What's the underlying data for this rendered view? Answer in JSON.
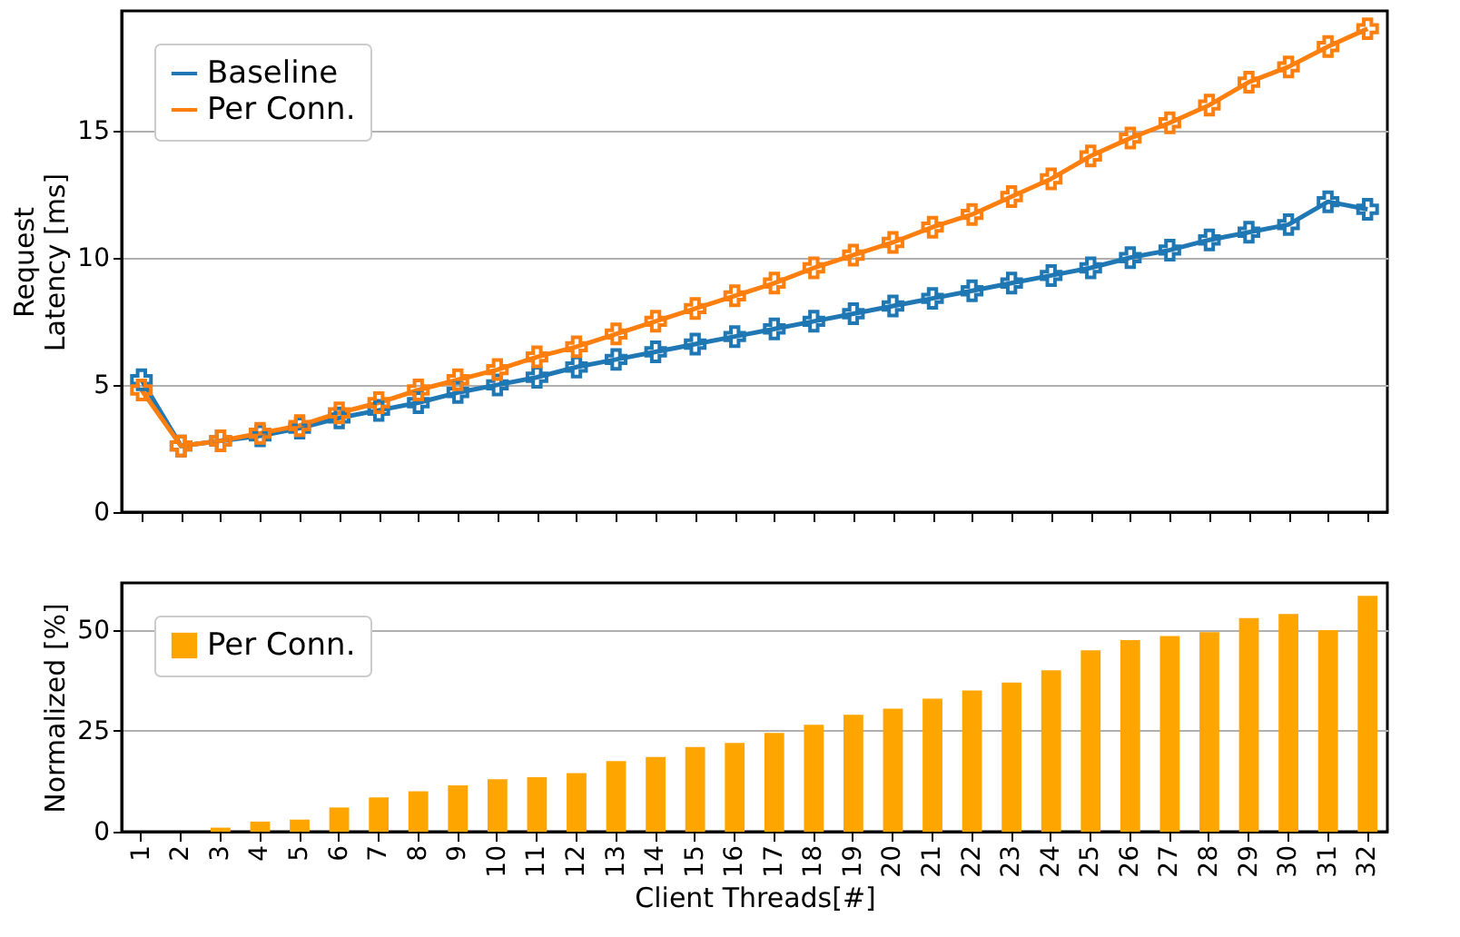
{
  "chart_data": [
    {
      "type": "line",
      "ylabel": "Request\nLatency [ms]",
      "categories": [
        "1",
        "2",
        "3",
        "4",
        "5",
        "6",
        "7",
        "8",
        "9",
        "10",
        "11",
        "12",
        "13",
        "14",
        "15",
        "16",
        "17",
        "18",
        "19",
        "20",
        "21",
        "22",
        "23",
        "24",
        "25",
        "26",
        "27",
        "28",
        "29",
        "30",
        "31",
        "32"
      ],
      "series": [
        {
          "name": "Baseline",
          "color": "#1f77b4",
          "values": [
            5.2,
            2.6,
            2.8,
            3.0,
            3.3,
            3.7,
            4.0,
            4.3,
            4.7,
            5.0,
            5.3,
            5.7,
            6.0,
            6.3,
            6.6,
            6.9,
            7.2,
            7.5,
            7.8,
            8.1,
            8.4,
            8.7,
            9.0,
            9.3,
            9.6,
            10.0,
            10.3,
            10.7,
            11.0,
            11.3,
            12.2,
            11.9
          ]
        },
        {
          "name": "Per Conn.",
          "color": "#ff7f0e",
          "values": [
            4.8,
            2.6,
            2.8,
            3.1,
            3.4,
            3.9,
            4.3,
            4.8,
            5.2,
            5.6,
            6.1,
            6.5,
            7.0,
            7.5,
            8.0,
            8.5,
            9.0,
            9.6,
            10.1,
            10.6,
            11.2,
            11.7,
            12.4,
            13.1,
            14.0,
            14.7,
            15.3,
            16.0,
            16.9,
            17.5,
            18.3,
            19.0
          ]
        }
      ],
      "ylim": [
        0,
        19.7
      ],
      "yticks": [
        0,
        5,
        10,
        15
      ],
      "grid": "y",
      "legend": "top left",
      "marker": "cross",
      "line_style": "solid",
      "tick_labels": "y"
    },
    {
      "type": "bar",
      "ylabel": "Normalized [%]",
      "xlabel": "Client Threads[#]",
      "categories": [
        "1",
        "2",
        "3",
        "4",
        "5",
        "6",
        "7",
        "8",
        "9",
        "10",
        "11",
        "12",
        "13",
        "14",
        "15",
        "16",
        "17",
        "18",
        "19",
        "20",
        "21",
        "22",
        "23",
        "24",
        "25",
        "26",
        "27",
        "28",
        "29",
        "30",
        "31",
        "32"
      ],
      "series": [
        {
          "name": "Per Conn.",
          "color": "#ffa500",
          "values": [
            0,
            0,
            1,
            2.5,
            3,
            6,
            8.5,
            10,
            11.5,
            13,
            13.5,
            14.5,
            17.5,
            18.5,
            21,
            22,
            24.5,
            26.5,
            29,
            30.5,
            33,
            35,
            37,
            40,
            45,
            47.5,
            48.5,
            49.5,
            53,
            54,
            50,
            58.5
          ]
        }
      ],
      "ylim": [
        0,
        61.7
      ],
      "yticks": [
        0,
        25,
        50
      ],
      "grid": "y",
      "legend": "top left"
    }
  ]
}
